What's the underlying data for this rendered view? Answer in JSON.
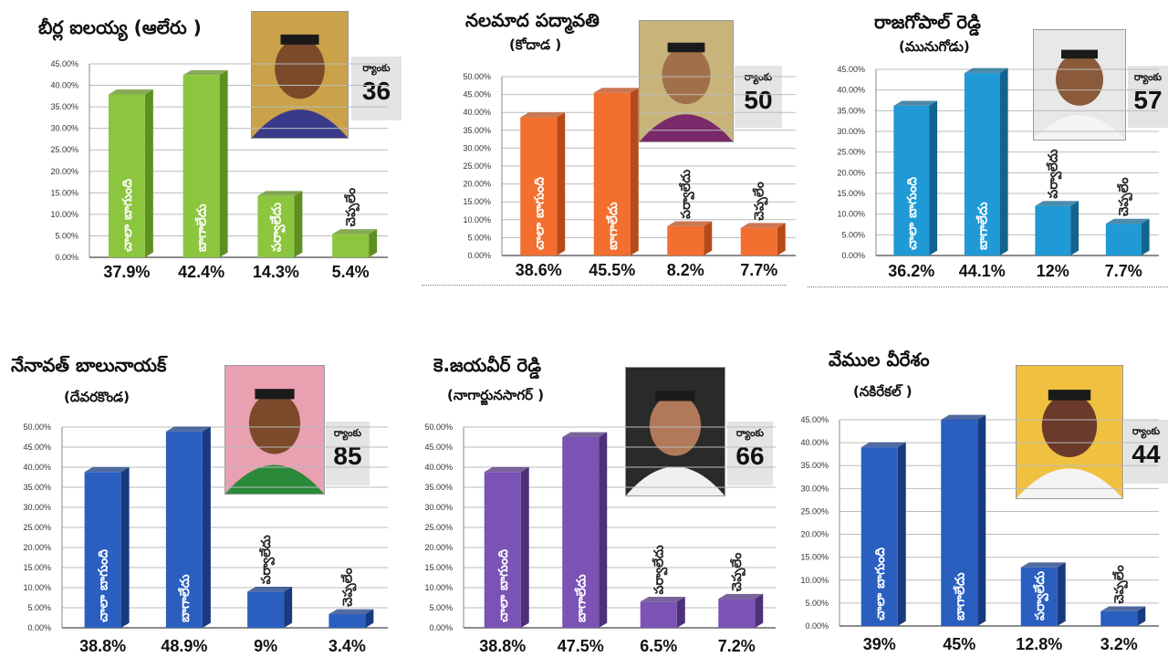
{
  "chart_data": [
    {
      "type": "bar",
      "title": "బీర్ల ఐలయ్య (ఆలేరు )",
      "subtitle": "",
      "rank_label": "ర్యాంకు",
      "rank": "36",
      "color": "#8cc63f",
      "color_dark": "#5f8f22",
      "categories": [
        "చాలా బాగుంది",
        "బాగాలేదు",
        "పర్వాలేదు",
        "చెప్పలేం"
      ],
      "values": [
        37.9,
        42.4,
        14.3,
        5.4
      ],
      "value_labels": [
        "37.9%",
        "42.4%",
        "14.3%",
        "5.4%"
      ],
      "ylim": [
        0,
        45
      ],
      "yticks": [
        "0.00%",
        "5.00%",
        "10.00%",
        "15.00%",
        "20.00%",
        "25.00%",
        "30.00%",
        "35.00%",
        "40.00%",
        "45.00%"
      ],
      "photo_colors": [
        "#c9a24a",
        "#3a3a8a",
        "#7a4a2a"
      ]
    },
    {
      "type": "bar",
      "title": "నలమాద పద్మావతి",
      "subtitle": "(కోదాడ )",
      "rank_label": "ర్యాంకు",
      "rank": "50",
      "color": "#f26f2f",
      "color_dark": "#b84a18",
      "categories": [
        "చాలా బాగుంది",
        "బాగాలేదు",
        "పర్వాలేదు",
        "చెప్పలేం"
      ],
      "values": [
        38.6,
        45.5,
        8.2,
        7.7
      ],
      "value_labels": [
        "38.6%",
        "45.5%",
        "8.2%",
        "7.7%"
      ],
      "ylim": [
        0,
        50
      ],
      "yticks": [
        "0.00%",
        "5.00%",
        "10.00%",
        "15.00%",
        "20.00%",
        "25.00%",
        "30.00%",
        "35.00%",
        "40.00%",
        "45.00%",
        "50.00%"
      ],
      "photo_colors": [
        "#c8b37a",
        "#7a2a6a",
        "#a0704a"
      ]
    },
    {
      "type": "bar",
      "title": "రాజగోపాల్ రెడ్డి",
      "subtitle": "(మునుగోడు)",
      "rank_label": "ర్యాంకు",
      "rank": "57",
      "color": "#1f9ad6",
      "color_dark": "#12648f",
      "categories": [
        "చాలా బాగుంది",
        "బాగాలేదు",
        "పర్వాలేదు",
        "చెప్పలేం"
      ],
      "values": [
        36.2,
        44.1,
        12,
        7.7
      ],
      "value_labels": [
        "36.2%",
        "44.1%",
        "12%",
        "7.7%"
      ],
      "ylim": [
        0,
        45
      ],
      "yticks": [
        "0.00%",
        "5.00%",
        "10.00%",
        "15.00%",
        "20.00%",
        "25.00%",
        "30.00%",
        "35.00%",
        "40.00%",
        "45.00%"
      ],
      "photo_colors": [
        "#e8e8e8",
        "#f4f4f4",
        "#8a5a3a"
      ]
    },
    {
      "type": "bar",
      "title": "నేనావత్ బాలునాయక్",
      "subtitle": "(దేవరకొండ)",
      "rank_label": "ర్యాంకు",
      "rank": "85",
      "color": "#2a5fc0",
      "color_dark": "#173a80",
      "categories": [
        "చాలా బాగుంది",
        "బాగాలేదు",
        "పర్వాలేదు",
        "చెప్పలేం"
      ],
      "values": [
        38.8,
        48.9,
        9,
        3.4
      ],
      "value_labels": [
        "38.8%",
        "48.9%",
        "9%",
        "3.4%"
      ],
      "ylim": [
        0,
        50
      ],
      "yticks": [
        "0.00%",
        "5.00%",
        "10.00%",
        "15.00%",
        "20.00%",
        "25.00%",
        "30.00%",
        "35.00%",
        "40.00%",
        "45.00%",
        "50.00%"
      ],
      "photo_colors": [
        "#e9a0b0",
        "#2a8a3a",
        "#7a4a2a"
      ]
    },
    {
      "type": "bar",
      "title": "కె.జయవీర్ రెడ్డి",
      "subtitle": "(నాగార్జునసాగర్ )",
      "rank_label": "ర్యాంకు",
      "rank": "66",
      "color": "#7b52b5",
      "color_dark": "#4e3078",
      "categories": [
        "చాలా బాగుంది",
        "బాగాలేదు",
        "పర్వాలేదు",
        "చెప్పలేం"
      ],
      "values": [
        38.8,
        47.5,
        6.5,
        7.2
      ],
      "value_labels": [
        "38.8%",
        "47.5%",
        "6.5%",
        "7.2%"
      ],
      "ylim": [
        0,
        50
      ],
      "yticks": [
        "0.00%",
        "5.00%",
        "10.00%",
        "15.00%",
        "20.00%",
        "25.00%",
        "30.00%",
        "35.00%",
        "40.00%",
        "45.00%",
        "50.00%"
      ],
      "photo_colors": [
        "#2a2a2a",
        "#f0f0f0",
        "#b07a5a"
      ]
    },
    {
      "type": "bar",
      "title": "వేముల వీరేశం",
      "subtitle": "(నకిరేకల్ )",
      "rank_label": "ర్యాంకు",
      "rank": "44",
      "color": "#2a5fc0",
      "color_dark": "#173a80",
      "categories": [
        "చాలా బాగుంది",
        "బాగాలేదు",
        "పర్వాలేదు",
        "చెప్పలేం"
      ],
      "values": [
        39,
        45,
        12.8,
        3.2
      ],
      "value_labels": [
        "39%",
        "45%",
        "12.8%",
        "3.2%"
      ],
      "ylim": [
        0,
        45
      ],
      "yticks": [
        "0.00%",
        "5.00%",
        "10.00%",
        "15.00%",
        "20.00%",
        "25.00%",
        "30.00%",
        "35.00%",
        "40.00%",
        "45.00%"
      ],
      "photo_colors": [
        "#f0c040",
        "#f4f4f4",
        "#6a3a2a"
      ]
    }
  ]
}
